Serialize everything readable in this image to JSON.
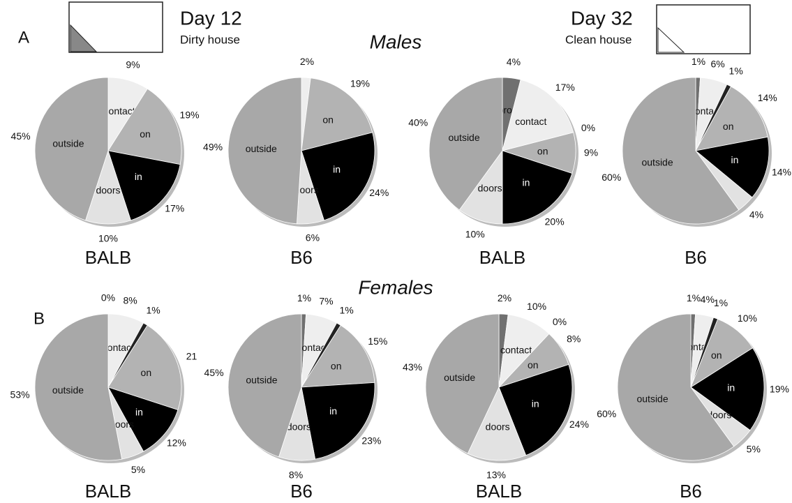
{
  "labels": {
    "panel_a": "A",
    "panel_b": "B",
    "day12": "Day 12",
    "dirty": "Dirty house",
    "day32": "Day 32",
    "clean": "Clean house",
    "males": "Males",
    "females": "Females"
  },
  "chart_data": [
    {
      "type": "pie",
      "title": "BALB",
      "categories": [
        "contact",
        "on",
        "in",
        "doors",
        "outside"
      ],
      "values": [
        9,
        19,
        17,
        10,
        45
      ],
      "value_labels": [
        "9%",
        "19%",
        "17%",
        "10%",
        "45%"
      ],
      "colors": [
        "#eeeeee",
        "#b3b3b3",
        "#000000",
        "#e2e2e2",
        "#a8a8a8"
      ]
    },
    {
      "type": "pie",
      "title": "B6",
      "categories": [
        null,
        "on",
        "in",
        "doors",
        "outside"
      ],
      "values": [
        2,
        19,
        24,
        6,
        49
      ],
      "value_labels": [
        "2%",
        "19%",
        "24%",
        "6%",
        "49%"
      ],
      "colors": [
        "#eeeeee",
        "#b3b3b3",
        "#000000",
        "#e2e2e2",
        "#a8a8a8"
      ]
    },
    {
      "type": "pie",
      "title": "BALB",
      "categories": [
        "approach",
        "contact",
        null,
        "on",
        "in",
        "doors",
        "outside"
      ],
      "values": [
        4,
        17,
        0,
        9,
        20,
        10,
        40
      ],
      "value_labels": [
        "4%",
        "17%",
        "0%",
        "9%",
        "20%",
        "10%",
        "40%"
      ],
      "colors": [
        "#707070",
        "#eeeeee",
        "#222222",
        "#b3b3b3",
        "#000000",
        "#e2e2e2",
        "#a8a8a8"
      ]
    },
    {
      "type": "pie",
      "title": "B6",
      "categories": [
        null,
        "contact",
        null,
        "on",
        "in",
        null,
        "outside"
      ],
      "values": [
        1,
        6,
        1,
        14,
        14,
        4,
        60
      ],
      "value_labels": [
        "1%",
        "6%",
        "1%",
        "14%",
        "14%",
        "4%",
        "60%"
      ],
      "colors": [
        "#707070",
        "#eeeeee",
        "#222222",
        "#b3b3b3",
        "#000000",
        "#e2e2e2",
        "#a8a8a8"
      ]
    },
    {
      "type": "pie",
      "title": "BALB",
      "categories": [
        null,
        "contact",
        null,
        "on",
        "in",
        "doors",
        "outside"
      ],
      "values": [
        0,
        8,
        1,
        21,
        12,
        5,
        53
      ],
      "value_labels": [
        "0%",
        "8%",
        "1%",
        "21",
        "12%",
        "5%",
        "53%"
      ],
      "colors": [
        "#707070",
        "#eeeeee",
        "#222222",
        "#b3b3b3",
        "#000000",
        "#e2e2e2",
        "#a8a8a8"
      ]
    },
    {
      "type": "pie",
      "title": "B6",
      "categories": [
        null,
        "contact",
        null,
        "on",
        "in",
        "doors",
        "outside"
      ],
      "values": [
        1,
        7,
        1,
        15,
        23,
        8,
        45
      ],
      "value_labels": [
        "1%",
        "7%",
        "1%",
        "15%",
        "23%",
        "8%",
        "45%"
      ],
      "colors": [
        "#707070",
        "#eeeeee",
        "#222222",
        "#b3b3b3",
        "#000000",
        "#e2e2e2",
        "#a8a8a8"
      ]
    },
    {
      "type": "pie",
      "title": "BALB",
      "categories": [
        null,
        "contact",
        null,
        "on",
        "in",
        "doors",
        "outside"
      ],
      "values": [
        2,
        10,
        0,
        8,
        24,
        13,
        43
      ],
      "value_labels": [
        "2%",
        "10%",
        "0%",
        "8%",
        "24%",
        "13%",
        "43%"
      ],
      "colors": [
        "#707070",
        "#eeeeee",
        "#222222",
        "#b3b3b3",
        "#000000",
        "#e2e2e2",
        "#a8a8a8"
      ]
    },
    {
      "type": "pie",
      "title": "B6",
      "categories": [
        null,
        "contact",
        null,
        "on",
        "in",
        "doors",
        "outside"
      ],
      "values": [
        1,
        4,
        1,
        10,
        19,
        5,
        60
      ],
      "value_labels": [
        "1%",
        "4%",
        "1%",
        "10%",
        "19%",
        "5%",
        "60%"
      ],
      "colors": [
        "#707070",
        "#eeeeee",
        "#222222",
        "#b3b3b3",
        "#000000",
        "#e2e2e2",
        "#a8a8a8"
      ]
    }
  ]
}
